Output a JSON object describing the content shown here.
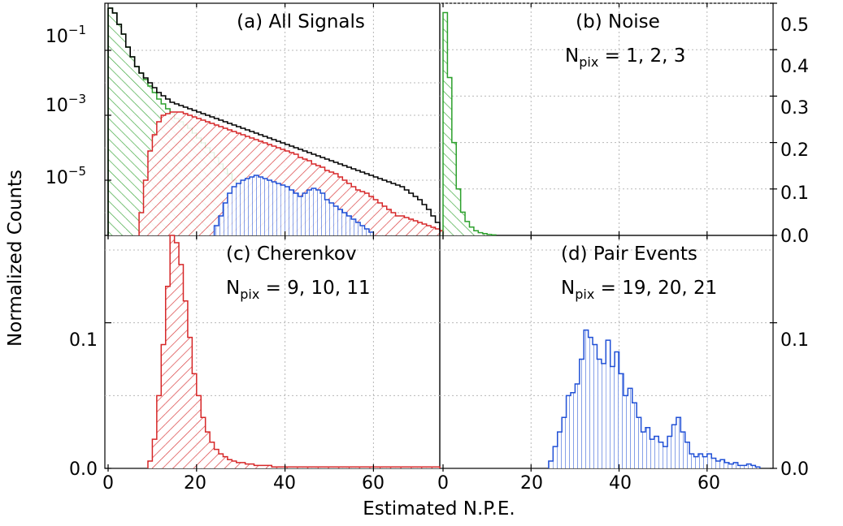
{
  "figure": {
    "xlabel": "Estimated N.P.E.",
    "ylabel": "Normalized Counts"
  },
  "colors": {
    "noise": "#2ca02c",
    "cherenkov": "#d62728",
    "pair": "#1f4fd6",
    "all": "#000000"
  },
  "panels": [
    {
      "id": "a",
      "title": "(a) All Signals",
      "subtitle_main": "",
      "subtitle_sub": "",
      "subtitle_rest": "",
      "yticks_left": [
        "10−1",
        "10−3",
        "10−5"
      ],
      "yticks_right": []
    },
    {
      "id": "b",
      "title": "(b) Noise",
      "subtitle_main": "N",
      "subtitle_sub": "pix",
      "subtitle_rest": " = 1, 2, 3",
      "yticks_left": [],
      "yticks_right": [
        "0.5",
        "0.4",
        "0.3",
        "0.2",
        "0.1",
        "0.0"
      ]
    },
    {
      "id": "c",
      "title": "(c) Cherenkov",
      "subtitle_main": "N",
      "subtitle_sub": "pix",
      "subtitle_rest": " = 9, 10, 11",
      "yticks_left": [
        "0.1",
        "0.0"
      ],
      "yticks_right": [],
      "xticks": [
        "0",
        "20",
        "40",
        "60"
      ]
    },
    {
      "id": "d",
      "title": "(d) Pair Events",
      "subtitle_main": "N",
      "subtitle_sub": "pix",
      "subtitle_rest": " = 19, 20, 21",
      "yticks_left": [],
      "yticks_right": [
        "0.1",
        "0.0"
      ],
      "xticks": [
        "0",
        "20",
        "40",
        "60"
      ]
    }
  ],
  "chart_data": [
    {
      "type": "histogram",
      "panel": "a",
      "title": "(a) All Signals",
      "yscale": "log",
      "xlim": [
        0,
        75
      ],
      "ylim_log10": [
        -6.7,
        0.45
      ],
      "bin_width": 1,
      "series": [
        {
          "name": "Noise (N_pix = 1, 2, 3)",
          "color": "#2ca02c",
          "hatch": "diagonal",
          "x_start": 0,
          "log10_values": [
            0.3,
            0.15,
            -0.2,
            -0.5,
            -0.9,
            -1.2,
            -1.5,
            -1.7,
            -1.9,
            -2.1,
            -2.3,
            -2.5,
            -2.65,
            -2.8,
            -2.95,
            -3.1,
            -3.2,
            -3.3,
            -3.4,
            -3.55,
            -3.7,
            -3.85,
            -4.0,
            -4.15,
            -4.3,
            -4.5,
            -4.65,
            -4.8,
            -5.0,
            -5.2,
            -5.4,
            -5.6,
            -5.8,
            -6.0,
            -6.2,
            -6.4,
            -6.55,
            -6.65
          ]
        },
        {
          "name": "Cherenkov (N_pix = 9, 10, 11)",
          "color": "#d62728",
          "hatch": "anti-diagonal",
          "x_start": 7,
          "log10_values": [
            -6.0,
            -5.0,
            -4.1,
            -3.6,
            -3.2,
            -3.0,
            -2.95,
            -2.9,
            -2.9,
            -2.9,
            -2.95,
            -3.0,
            -3.05,
            -3.1,
            -3.15,
            -3.2,
            -3.25,
            -3.3,
            -3.35,
            -3.4,
            -3.45,
            -3.5,
            -3.55,
            -3.6,
            -3.65,
            -3.7,
            -3.75,
            -3.8,
            -3.85,
            -3.9,
            -3.95,
            -4.0,
            -4.05,
            -4.1,
            -4.15,
            -4.2,
            -4.3,
            -4.35,
            -4.4,
            -4.5,
            -4.55,
            -4.6,
            -4.7,
            -4.75,
            -4.8,
            -4.9,
            -5.0,
            -5.1,
            -5.2,
            -5.3,
            -5.35,
            -5.4,
            -5.5,
            -5.6,
            -5.7,
            -5.8,
            -5.9,
            -6.0,
            -6.1,
            -6.1,
            -6.15,
            -6.2,
            -6.25,
            -6.3,
            -6.35,
            -6.4,
            -6.45,
            -6.5,
            -6.55
          ]
        },
        {
          "name": "Pair Events (N_pix = 19, 20, 21)",
          "color": "#1f4fd6",
          "hatch": "vertical",
          "x_start": 24,
          "log10_values": [
            -6.4,
            -6.1,
            -5.7,
            -5.4,
            -5.2,
            -5.1,
            -5.0,
            -4.95,
            -4.9,
            -4.85,
            -4.9,
            -4.95,
            -5.0,
            -5.05,
            -5.1,
            -5.15,
            -5.2,
            -5.3,
            -5.4,
            -5.5,
            -5.4,
            -5.3,
            -5.25,
            -5.3,
            -5.4,
            -5.6,
            -5.7,
            -5.8,
            -5.9,
            -6.0,
            -6.1,
            -6.2,
            -6.3,
            -6.4,
            -6.5,
            -6.6
          ]
        },
        {
          "name": "All Signals",
          "color": "#000000",
          "hatch": "none",
          "x_start": 0,
          "log10_values": [
            0.3,
            0.15,
            -0.2,
            -0.5,
            -0.9,
            -1.2,
            -1.5,
            -1.7,
            -1.85,
            -2.0,
            -2.15,
            -2.3,
            -2.4,
            -2.5,
            -2.6,
            -2.65,
            -2.7,
            -2.75,
            -2.8,
            -2.85,
            -2.9,
            -2.95,
            -3.0,
            -3.05,
            -3.1,
            -3.15,
            -3.2,
            -3.25,
            -3.3,
            -3.35,
            -3.4,
            -3.45,
            -3.5,
            -3.55,
            -3.6,
            -3.65,
            -3.7,
            -3.75,
            -3.8,
            -3.85,
            -3.9,
            -3.95,
            -4.0,
            -4.05,
            -4.1,
            -4.15,
            -4.2,
            -4.25,
            -4.3,
            -4.35,
            -4.4,
            -4.45,
            -4.5,
            -4.55,
            -4.6,
            -4.65,
            -4.7,
            -4.75,
            -4.8,
            -4.85,
            -4.9,
            -4.95,
            -5.0,
            -5.05,
            -5.1,
            -5.15,
            -5.2,
            -5.3,
            -5.4,
            -5.5,
            -5.6,
            -5.75,
            -5.9,
            -6.1,
            -6.3
          ]
        }
      ]
    },
    {
      "type": "histogram",
      "panel": "b",
      "title": "(b) Noise",
      "yscale": "linear",
      "xlim": [
        0,
        75
      ],
      "ylim": [
        0,
        0.5
      ],
      "bin_width": 1,
      "series": [
        {
          "name": "Noise",
          "color": "#2ca02c",
          "hatch": "diagonal",
          "x_start": 0,
          "values": [
            0.48,
            0.34,
            0.2,
            0.1,
            0.05,
            0.03,
            0.018,
            0.01,
            0.006,
            0.004,
            0.002,
            0.001
          ]
        }
      ]
    },
    {
      "type": "histogram",
      "panel": "c",
      "title": "(c) Cherenkov",
      "yscale": "linear",
      "xlim": [
        0,
        75
      ],
      "ylim": [
        0,
        0.16
      ],
      "bin_width": 1,
      "series": [
        {
          "name": "Cherenkov",
          "color": "#d62728",
          "hatch": "anti-diagonal",
          "x_start": 9,
          "values": [
            0.005,
            0.02,
            0.05,
            0.085,
            0.125,
            0.16,
            0.155,
            0.14,
            0.115,
            0.09,
            0.065,
            0.05,
            0.035,
            0.025,
            0.018,
            0.013,
            0.01,
            0.008,
            0.006,
            0.005,
            0.004,
            0.004,
            0.003,
            0.003,
            0.002,
            0.002,
            0.002,
            0.002,
            0.001,
            0.001,
            0.001,
            0.001,
            0.001,
            0.001,
            0.001,
            0.001,
            0.001,
            0.001,
            0.001,
            0.001,
            0.001,
            0.001,
            0.001,
            0.001,
            0.001,
            0.001,
            0.001,
            0.001,
            0.001,
            0.001,
            0.001,
            0.001,
            0.001,
            0.001,
            0.001,
            0.001,
            0.001,
            0.001,
            0.001,
            0.001,
            0.001,
            0.001,
            0.001,
            0.001,
            0.001,
            0.001
          ]
        }
      ]
    },
    {
      "type": "histogram",
      "panel": "d",
      "title": "(d) Pair Events",
      "yscale": "linear",
      "xlim": [
        0,
        75
      ],
      "ylim": [
        0,
        0.16
      ],
      "bin_width": 1,
      "series": [
        {
          "name": "Pair Events",
          "color": "#1f4fd6",
          "hatch": "vertical",
          "x_start": 24,
          "values": [
            0.005,
            0.015,
            0.025,
            0.035,
            0.05,
            0.052,
            0.058,
            0.075,
            0.095,
            0.09,
            0.085,
            0.075,
            0.072,
            0.088,
            0.07,
            0.08,
            0.065,
            0.05,
            0.055,
            0.045,
            0.035,
            0.025,
            0.028,
            0.02,
            0.022,
            0.018,
            0.015,
            0.022,
            0.03,
            0.035,
            0.025,
            0.018,
            0.01,
            0.008,
            0.01,
            0.008,
            0.01,
            0.007,
            0.005,
            0.006,
            0.004,
            0.003,
            0.004,
            0.002,
            0.002,
            0.003,
            0.002,
            0.001
          ]
        }
      ]
    }
  ]
}
